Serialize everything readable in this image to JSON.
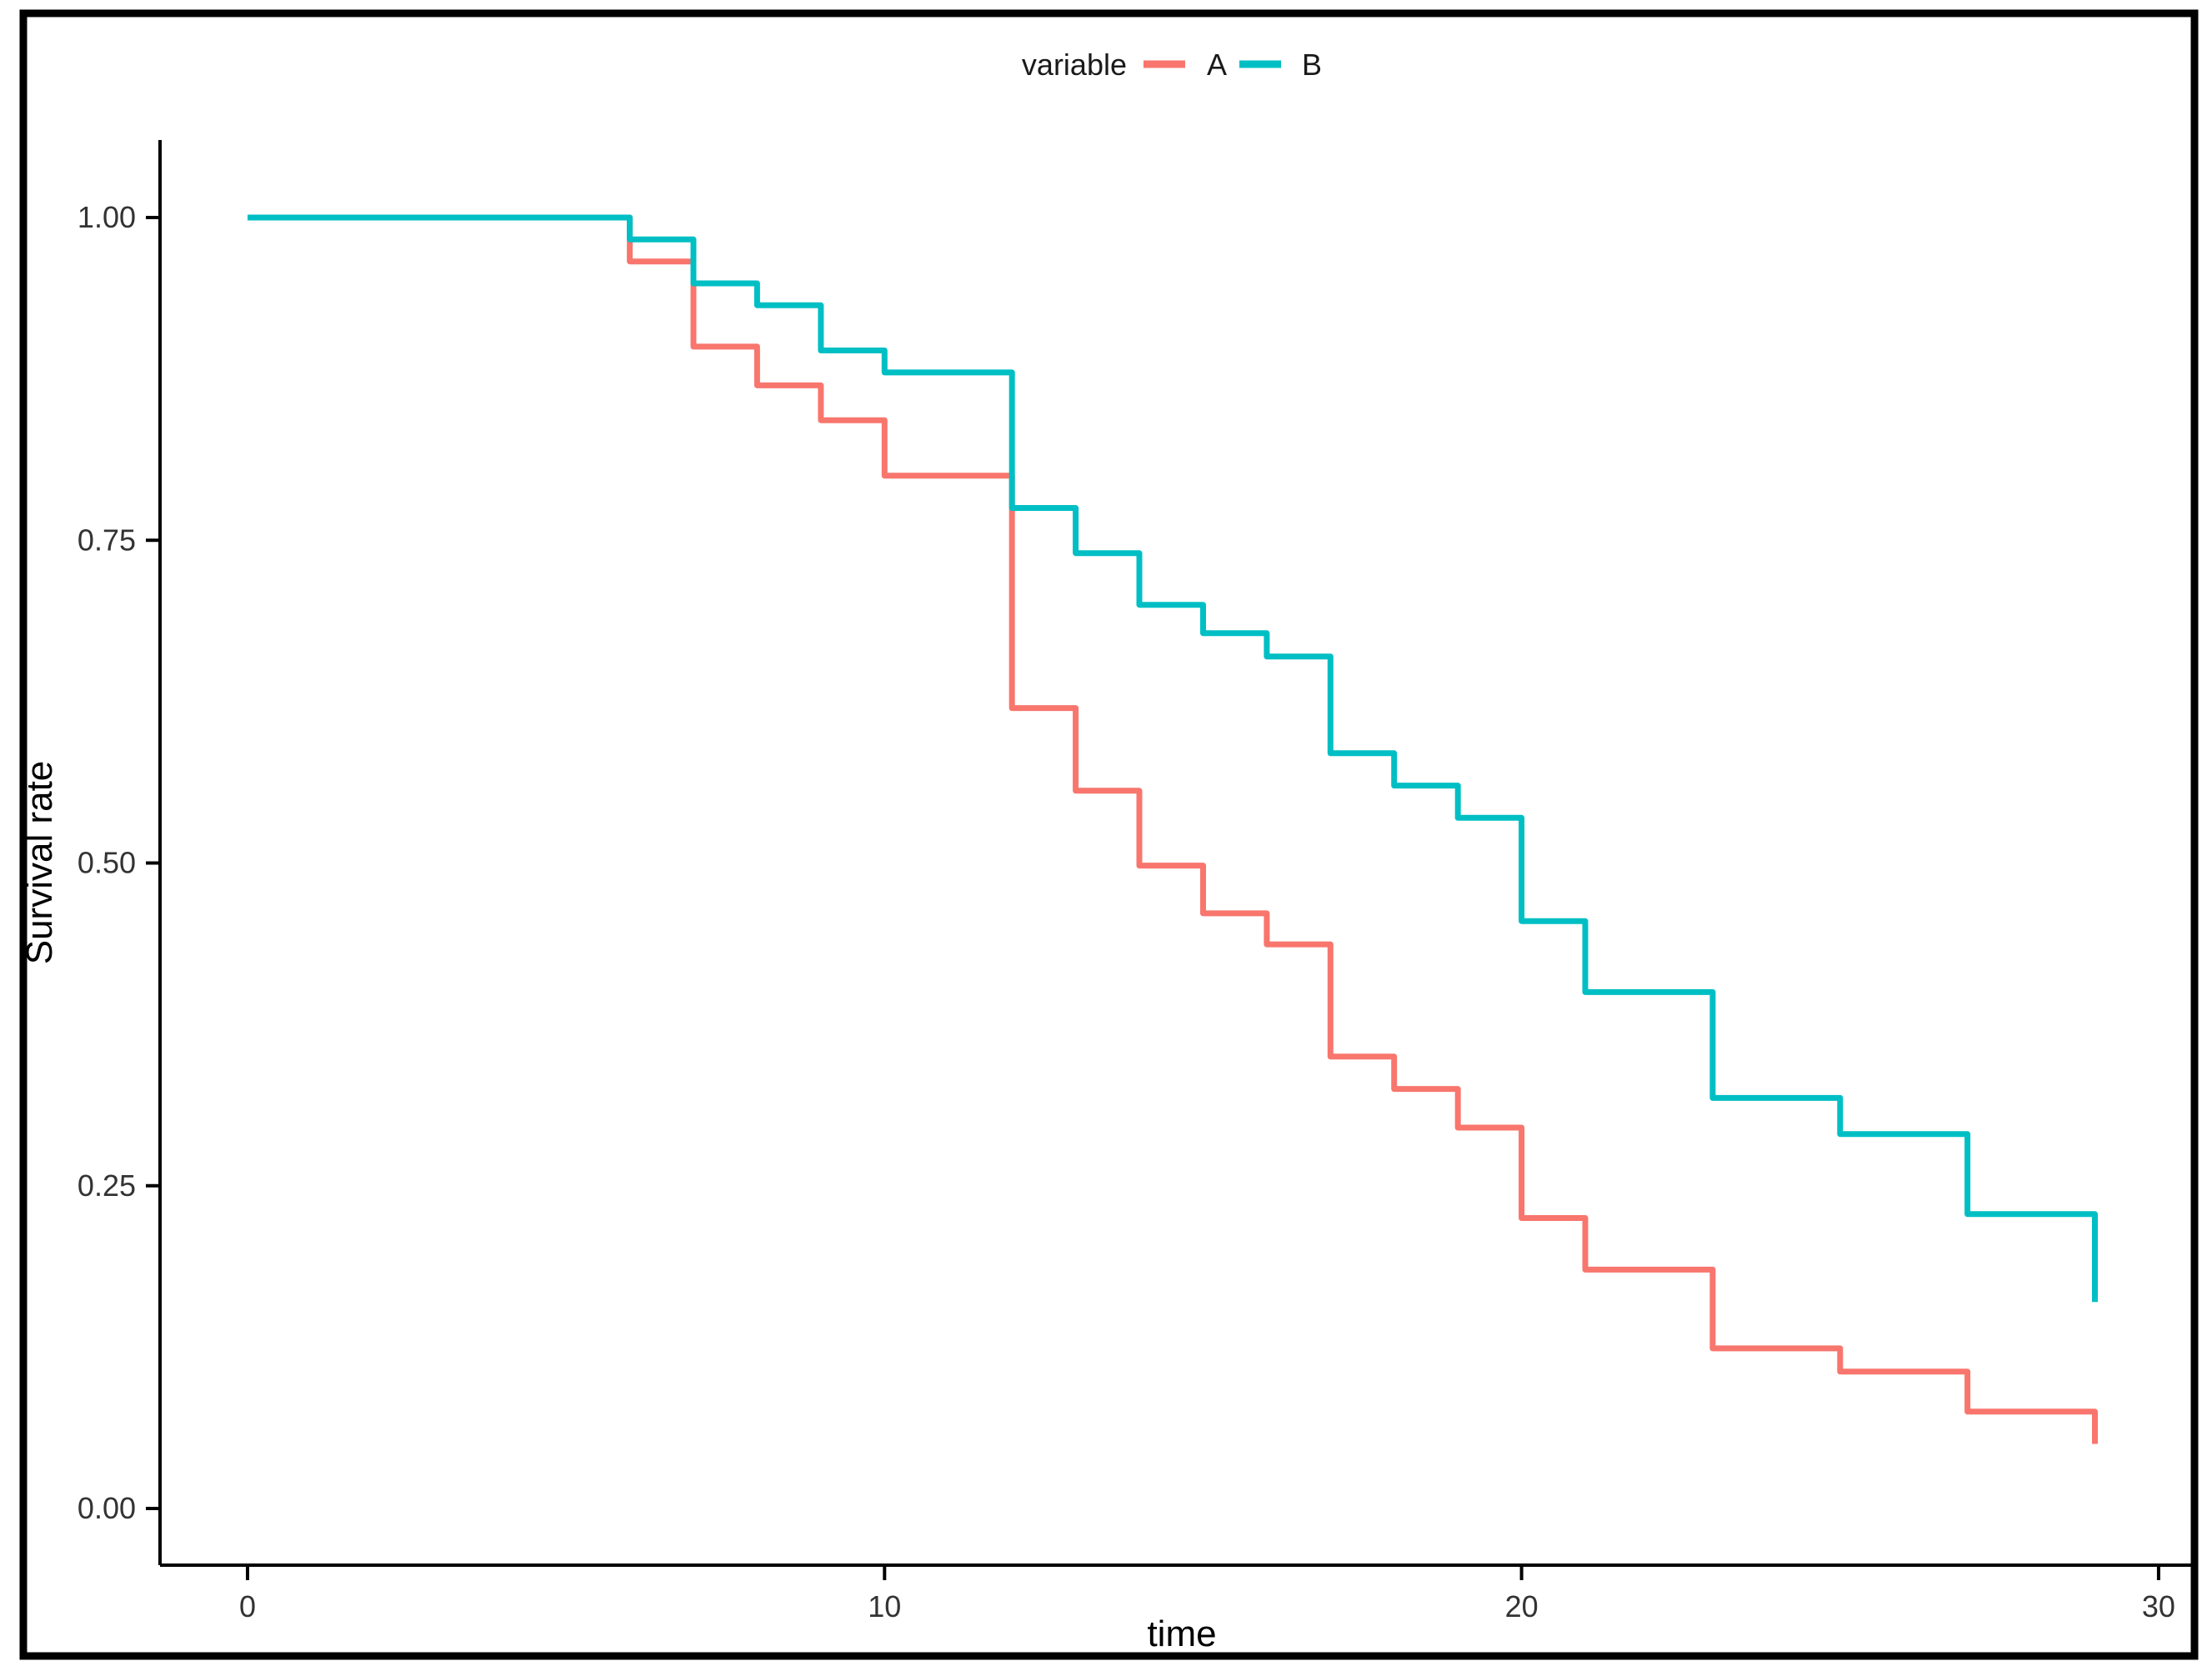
{
  "figure": {
    "background_color": "#ffffff",
    "frame_color": "#000000",
    "axis_color": "#000000",
    "tick_label_color": "#333333"
  },
  "chart_data": {
    "type": "line",
    "subtype": "step",
    "chart_kind": "survival-curve",
    "title": "",
    "xlabel": "time",
    "ylabel": "Survival rate",
    "xlim": [
      0,
      30
    ],
    "ylim": [
      0.0,
      1.0
    ],
    "grid": "off",
    "x_ticks": [
      {
        "v": 0,
        "label": "0"
      },
      {
        "v": 10,
        "label": "10"
      },
      {
        "v": 20,
        "label": "20"
      },
      {
        "v": 30,
        "label": "30"
      }
    ],
    "y_ticks": [
      {
        "v": 0.0,
        "label": "0.00"
      },
      {
        "v": 0.25,
        "label": "0.25"
      },
      {
        "v": 0.5,
        "label": "0.50"
      },
      {
        "v": 0.75,
        "label": "0.75"
      },
      {
        "v": 1.0,
        "label": "1.00"
      }
    ],
    "legend": {
      "title": "variable",
      "position": "top",
      "entries": [
        {
          "label": "A",
          "color": "#F8766D"
        },
        {
          "label": "B",
          "color": "#00BFC4"
        }
      ]
    },
    "series": [
      {
        "name": "A",
        "color": "#F8766D",
        "points": [
          [
            0,
            1.0
          ],
          [
            6,
            0.966
          ],
          [
            7,
            0.9
          ],
          [
            8,
            0.87
          ],
          [
            9,
            0.843
          ],
          [
            10,
            0.8
          ],
          [
            12,
            0.62
          ],
          [
            13,
            0.556
          ],
          [
            14,
            0.498
          ],
          [
            15,
            0.461
          ],
          [
            16,
            0.437
          ],
          [
            17,
            0.35
          ],
          [
            18,
            0.325
          ],
          [
            19,
            0.295
          ],
          [
            20,
            0.225
          ],
          [
            21,
            0.185
          ],
          [
            23,
            0.124
          ],
          [
            25,
            0.106
          ],
          [
            27,
            0.075
          ],
          [
            29,
            0.05
          ]
        ]
      },
      {
        "name": "B",
        "color": "#00BFC4",
        "points": [
          [
            0,
            1.0
          ],
          [
            6,
            0.983
          ],
          [
            7,
            0.949
          ],
          [
            8,
            0.932
          ],
          [
            9,
            0.897
          ],
          [
            10,
            0.88
          ],
          [
            12,
            0.775
          ],
          [
            13,
            0.74
          ],
          [
            14,
            0.7
          ],
          [
            15,
            0.678
          ],
          [
            16,
            0.66
          ],
          [
            17,
            0.585
          ],
          [
            18,
            0.56
          ],
          [
            19,
            0.535
          ],
          [
            20,
            0.455
          ],
          [
            21,
            0.4
          ],
          [
            23,
            0.318
          ],
          [
            25,
            0.29
          ],
          [
            27,
            0.228
          ],
          [
            29,
            0.16
          ]
        ]
      }
    ]
  }
}
